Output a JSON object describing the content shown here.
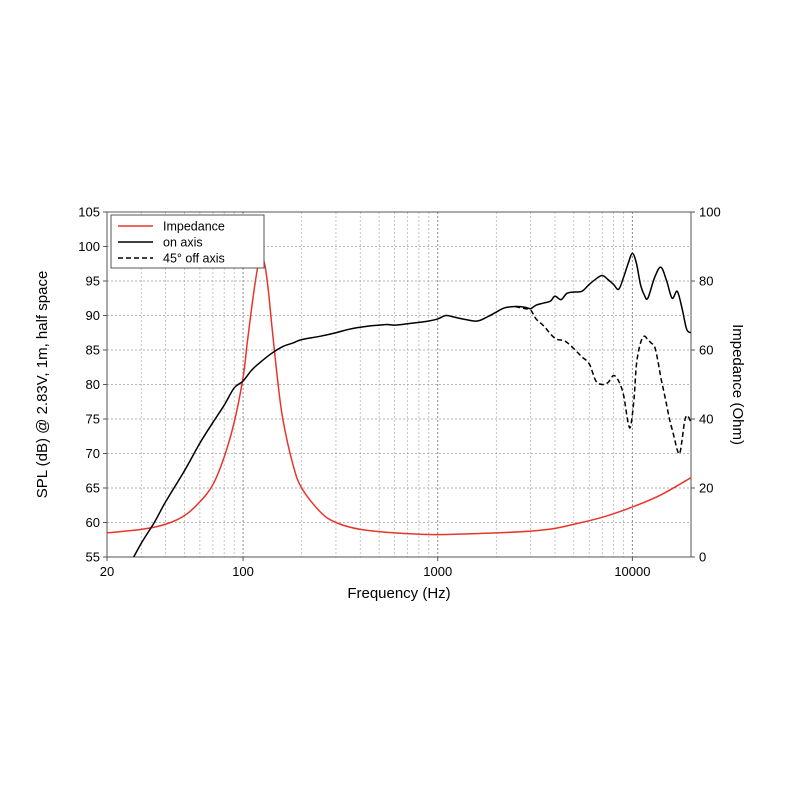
{
  "chart_data": {
    "type": "line",
    "title": "",
    "xlabel": "Frequency (Hz)",
    "ylabel": "SPL (dB) @ 2.83V, 1m, half space",
    "y2label": "Impedance (Ohm)",
    "x_scale": "log",
    "xlim": [
      20,
      20000
    ],
    "ylim": [
      55,
      105
    ],
    "y2lim": [
      0,
      100
    ],
    "x_ticks": [
      20,
      100,
      1000,
      10000
    ],
    "x_tick_labels": [
      "20",
      "100",
      "1000",
      "10000"
    ],
    "y_ticks": [
      55,
      60,
      65,
      70,
      75,
      80,
      85,
      90,
      95,
      100,
      105
    ],
    "y_tick_labels": [
      "55",
      "60",
      "65",
      "70",
      "75",
      "80",
      "85",
      "90",
      "95",
      "100",
      "105"
    ],
    "y2_ticks": [
      0,
      20,
      40,
      60,
      80,
      100
    ],
    "y2_tick_labels": [
      "0",
      "20",
      "40",
      "60",
      "80",
      "100"
    ],
    "grid": true,
    "legend_position": "top-left",
    "series": [
      {
        "name": "Impedance",
        "axis": "right",
        "color": "#e8352b",
        "style": "solid",
        "x": [
          20,
          30,
          40,
          50,
          60,
          70,
          80,
          90,
          100,
          105,
          110,
          115,
          120,
          125,
          130,
          135,
          140,
          150,
          160,
          180,
          200,
          250,
          300,
          400,
          600,
          1000,
          2000,
          3000,
          4000,
          5000,
          7000,
          10000,
          14000,
          20000
        ],
        "values": [
          7,
          8,
          9.5,
          12,
          16,
          21,
          29,
          39,
          52,
          62,
          71,
          79,
          85,
          87,
          84,
          77,
          68,
          52,
          40,
          27,
          20,
          13,
          10,
          8,
          7,
          6.5,
          7,
          7.5,
          8.3,
          9.5,
          11.5,
          14.5,
          18,
          23
        ]
      },
      {
        "name": "on axis",
        "axis": "left",
        "color": "#000000",
        "style": "solid",
        "x": [
          20,
          25,
          30,
          35,
          40,
          50,
          60,
          70,
          80,
          90,
          100,
          110,
          120,
          140,
          160,
          180,
          200,
          250,
          300,
          350,
          400,
          450,
          500,
          550,
          600,
          700,
          800,
          900,
          1000,
          1100,
          1200,
          1400,
          1600,
          1800,
          2000,
          2200,
          2500,
          2800,
          3000,
          3200,
          3500,
          3800,
          4000,
          4300,
          4600,
          5000,
          5500,
          6000,
          6500,
          7000,
          7500,
          8000,
          8500,
          9000,
          9500,
          10000,
          10500,
          11000,
          11500,
          12000,
          13000,
          14000,
          15000,
          16000,
          17000,
          18000,
          19000,
          20000
        ],
        "values": [
          49,
          53,
          57,
          60,
          63,
          67.5,
          71.5,
          74.5,
          77,
          79.5,
          80.5,
          82,
          83,
          84.5,
          85.5,
          86,
          86.5,
          87,
          87.5,
          88,
          88.3,
          88.5,
          88.6,
          88.7,
          88.6,
          88.8,
          89.0,
          89.2,
          89.5,
          90.0,
          89.8,
          89.4,
          89.2,
          89.8,
          90.5,
          91.1,
          91.3,
          91.2,
          91.0,
          91.5,
          91.8,
          92.1,
          92.8,
          92.3,
          93.2,
          93.4,
          93.5,
          94.5,
          95.3,
          95.8,
          95.2,
          94.5,
          93.8,
          95.5,
          97.5,
          99.0,
          97.5,
          94.5,
          93.0,
          92.5,
          95.5,
          97.0,
          95.0,
          92.5,
          93.5,
          91.0,
          88.0,
          87.5
        ]
      },
      {
        "name": "45° off axis",
        "axis": "left",
        "color": "#000000",
        "style": "dashed",
        "x": [
          2500,
          2800,
          3000,
          3200,
          3500,
          4000,
          4500,
          5000,
          5500,
          6000,
          6500,
          7000,
          7500,
          8000,
          8500,
          9000,
          9500,
          9800,
          10200,
          10500,
          11000,
          11500,
          12000,
          12500,
          13000,
          13500,
          14000,
          14500,
          15000,
          15500,
          16000,
          16500,
          17000,
          17500,
          18000,
          18500,
          19000,
          19500,
          20000
        ],
        "values": [
          91.3,
          91.0,
          90.8,
          89.5,
          88.5,
          86.7,
          86.3,
          85.2,
          84.0,
          83.0,
          80.5,
          80.0,
          80.3,
          81.3,
          80.5,
          78.5,
          74.5,
          74.0,
          78.0,
          83.0,
          86.0,
          87.0,
          86.5,
          86.0,
          85.5,
          83.5,
          81.0,
          79.0,
          77.0,
          75.0,
          73.5,
          72.0,
          70.5,
          70.0,
          72.0,
          74.5,
          75.5,
          75.2,
          74.5
        ]
      }
    ]
  }
}
